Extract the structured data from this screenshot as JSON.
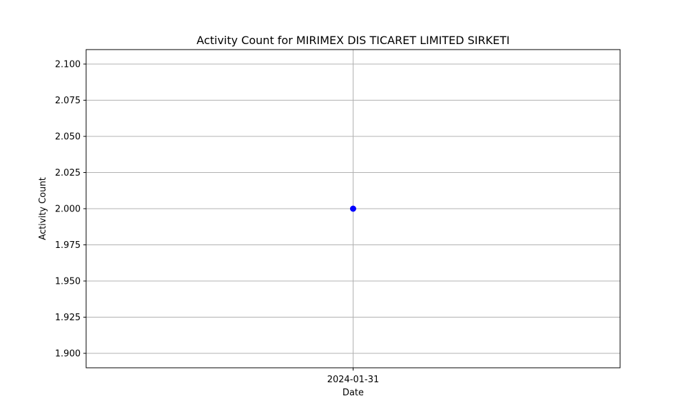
{
  "chart_data": {
    "type": "scatter",
    "title": "Activity Count for MIRIMEX DIS TICARET LIMITED SIRKETI",
    "xlabel": "Date",
    "ylabel": "Activity Count",
    "x": [
      "2024-01-31"
    ],
    "y": [
      2.0
    ],
    "ylim": [
      1.89,
      2.11
    ],
    "yticks": [
      "1.900",
      "1.925",
      "1.950",
      "1.975",
      "2.000",
      "2.025",
      "2.050",
      "2.075",
      "2.100"
    ],
    "xticks": [
      "2024-01-31"
    ],
    "grid": true,
    "marker_color": "#0000ff",
    "grid_color": "#b0b0b0"
  }
}
